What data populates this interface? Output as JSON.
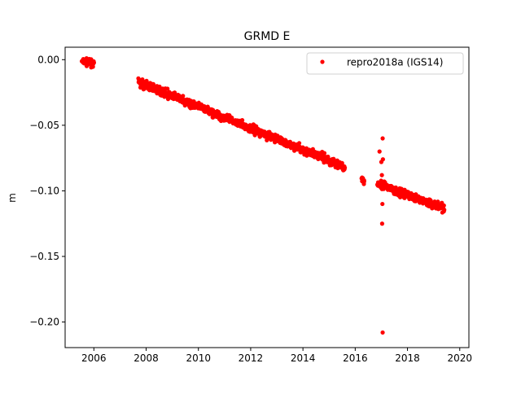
{
  "chart_data": {
    "type": "scatter",
    "title": "GRMD E",
    "xlabel": "",
    "ylabel": "m",
    "xlim": [
      2004.9,
      2020.35
    ],
    "ylim": [
      -0.2195,
      0.0095
    ],
    "xticks": [
      2006,
      2008,
      2010,
      2012,
      2014,
      2016,
      2018,
      2020
    ],
    "yticks": [
      0.0,
      -0.05,
      -0.1,
      -0.15,
      -0.2
    ],
    "ytick_labels": [
      "0.00",
      "−0.05",
      "−0.10",
      "−0.15",
      "−0.20"
    ],
    "grid": false,
    "legend_position": "top-right",
    "series": [
      {
        "name": "repro2018a (IGS14)",
        "color": "#ff0000",
        "marker": "circle",
        "segments": [
          {
            "x_start": 2005.55,
            "x_end": 2006.0,
            "y_start": -0.0015,
            "y_end": -0.003,
            "spread": 0.004
          },
          {
            "x_start": 2007.7,
            "x_end": 2015.6,
            "y_start": -0.017,
            "y_end": -0.082,
            "spread": 0.005
          },
          {
            "x_start": 2016.25,
            "x_end": 2016.35,
            "y_start": -0.091,
            "y_end": -0.093,
            "spread": 0.003
          },
          {
            "x_start": 2016.85,
            "x_end": 2019.4,
            "y_start": -0.095,
            "y_end": -0.113,
            "spread": 0.005
          }
        ],
        "outliers": [
          {
            "x": 2016.93,
            "y": -0.07
          },
          {
            "x": 2017.0,
            "y": -0.078
          },
          {
            "x": 2017.02,
            "y": -0.088
          },
          {
            "x": 2017.05,
            "y": -0.06
          },
          {
            "x": 2017.06,
            "y": -0.076
          },
          {
            "x": 2017.04,
            "y": -0.11
          },
          {
            "x": 2017.03,
            "y": -0.125
          },
          {
            "x": 2017.05,
            "y": -0.208
          }
        ]
      }
    ]
  }
}
